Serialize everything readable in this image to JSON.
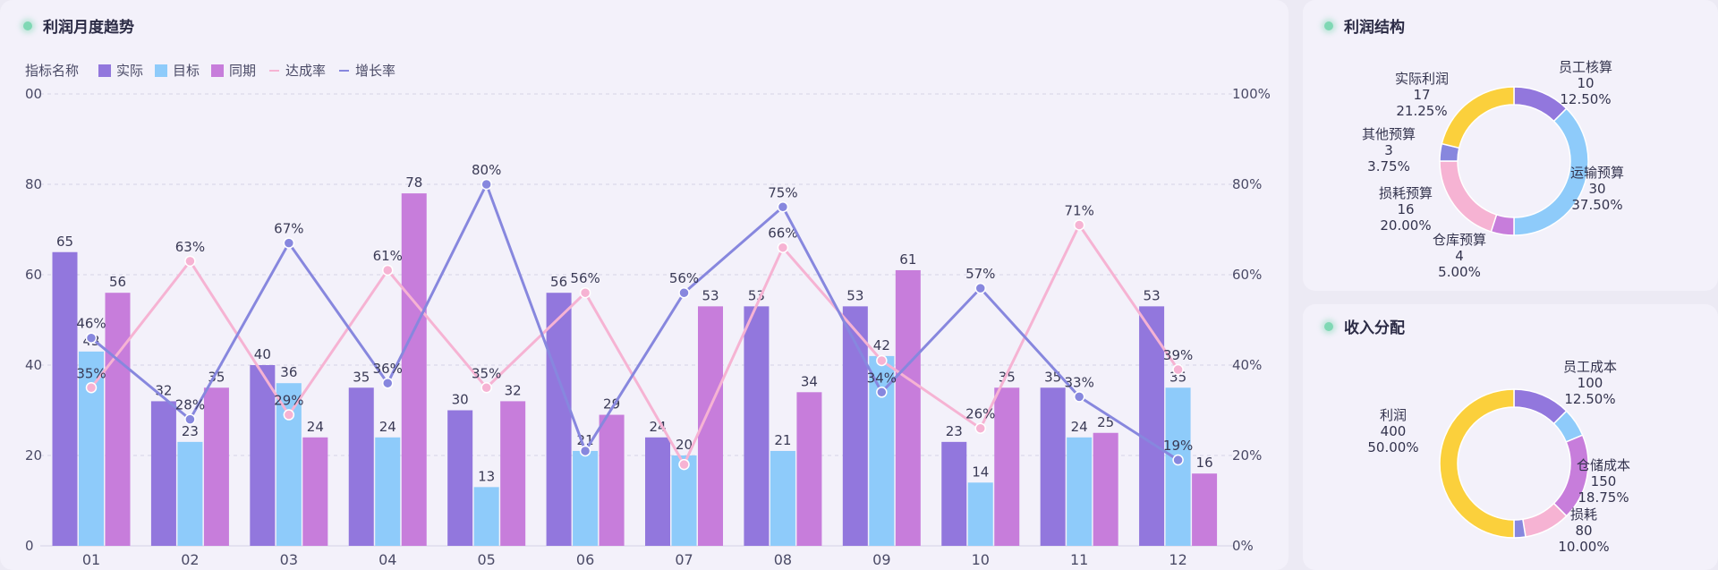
{
  "trend": {
    "title": "利润月度趋势",
    "legend_label": "指标名称",
    "legend": [
      {
        "name": "实际",
        "kind": "bar",
        "color": "#9277dd"
      },
      {
        "name": "目标",
        "kind": "bar",
        "color": "#8ecbfa"
      },
      {
        "name": "同期",
        "kind": "bar",
        "color": "#c77ddb"
      },
      {
        "name": "达成率",
        "kind": "line",
        "color": "#f6b3d3"
      },
      {
        "name": "增长率",
        "kind": "line",
        "color": "#8787de"
      }
    ],
    "left_axis_labels": [
      "0",
      "20",
      "40",
      "60",
      "80",
      "00"
    ],
    "right_axis_labels": [
      "0%",
      "20%",
      "40%",
      "60%",
      "80%",
      "100%"
    ]
  },
  "chart_data": [
    {
      "type": "bar",
      "title": "利润月度趋势",
      "categories": [
        "01",
        "02",
        "03",
        "04",
        "05",
        "06",
        "07",
        "08",
        "09",
        "10",
        "11",
        "12"
      ],
      "ylim": [
        0,
        100
      ],
      "y2lim": [
        0,
        100
      ],
      "series": [
        {
          "name": "实际",
          "values": [
            65,
            32,
            40,
            35,
            30,
            56,
            24,
            53,
            53,
            23,
            35,
            53
          ],
          "color": "#9277dd"
        },
        {
          "name": "目标",
          "values": [
            43,
            23,
            36,
            24,
            13,
            21,
            20,
            21,
            42,
            14,
            24,
            35
          ],
          "color": "#8ecbfa"
        },
        {
          "name": "同期",
          "values": [
            56,
            35,
            24,
            78,
            32,
            29,
            53,
            34,
            61,
            35,
            25,
            16
          ],
          "color": "#c77ddb"
        }
      ],
      "line_series": [
        {
          "name": "达成率",
          "values": [
            35,
            63,
            29,
            61,
            35,
            56,
            18,
            66,
            41,
            26,
            71,
            39
          ],
          "labels": [
            "35%",
            "63%",
            "29%",
            "61%",
            "35%",
            "56%",
            "",
            "66%",
            "",
            "26%",
            "71%",
            "39%"
          ],
          "color": "#f6b3d3"
        },
        {
          "name": "增长率",
          "values": [
            46,
            28,
            67,
            36,
            80,
            21,
            56,
            75,
            34,
            57,
            33,
            19
          ],
          "labels": [
            "46%",
            "28%",
            "67%",
            "36%",
            "80%",
            "",
            "56%",
            "75%",
            "34%",
            "57%",
            "33%",
            "19%"
          ],
          "color": "#8787de"
        }
      ],
      "legend_position": "top-left",
      "grid": true
    },
    {
      "type": "pie",
      "title": "利润结构",
      "slices": [
        {
          "name": "员工核算",
          "value": 10,
          "pct": "12.50%",
          "color": "#9277dd"
        },
        {
          "name": "运输预算",
          "value": 30,
          "pct": "37.50%",
          "color": "#8ecbfa"
        },
        {
          "name": "仓库预算",
          "value": 4,
          "pct": "5.00%",
          "color": "#c77ddb"
        },
        {
          "name": "损耗预算",
          "value": 16,
          "pct": "20.00%",
          "color": "#f6b3d3"
        },
        {
          "name": "其他预算",
          "value": 3,
          "pct": "3.75%",
          "color": "#8787de"
        },
        {
          "name": "实际利润",
          "value": 17,
          "pct": "21.25%",
          "color": "#fbd03c"
        }
      ]
    },
    {
      "type": "pie",
      "title": "收入分配",
      "slices": [
        {
          "name": "员工成本",
          "value": 100,
          "pct": "12.50%",
          "color": "#9277dd"
        },
        {
          "name": "",
          "value": 50,
          "pct": "",
          "color": "#8ecbfa"
        },
        {
          "name": "仓储成本",
          "value": 150,
          "pct": "18.75%",
          "color": "#c77ddb"
        },
        {
          "name": "损耗",
          "value": 80,
          "pct": "10.00%",
          "color": "#f6b3d3"
        },
        {
          "name": "",
          "value": 20,
          "pct": "",
          "color": "#8787de"
        },
        {
          "name": "利润",
          "value": 400,
          "pct": "50.00%",
          "color": "#fbd03c"
        }
      ]
    }
  ],
  "structure": {
    "title": "利润结构"
  },
  "income": {
    "title": "收入分配"
  }
}
